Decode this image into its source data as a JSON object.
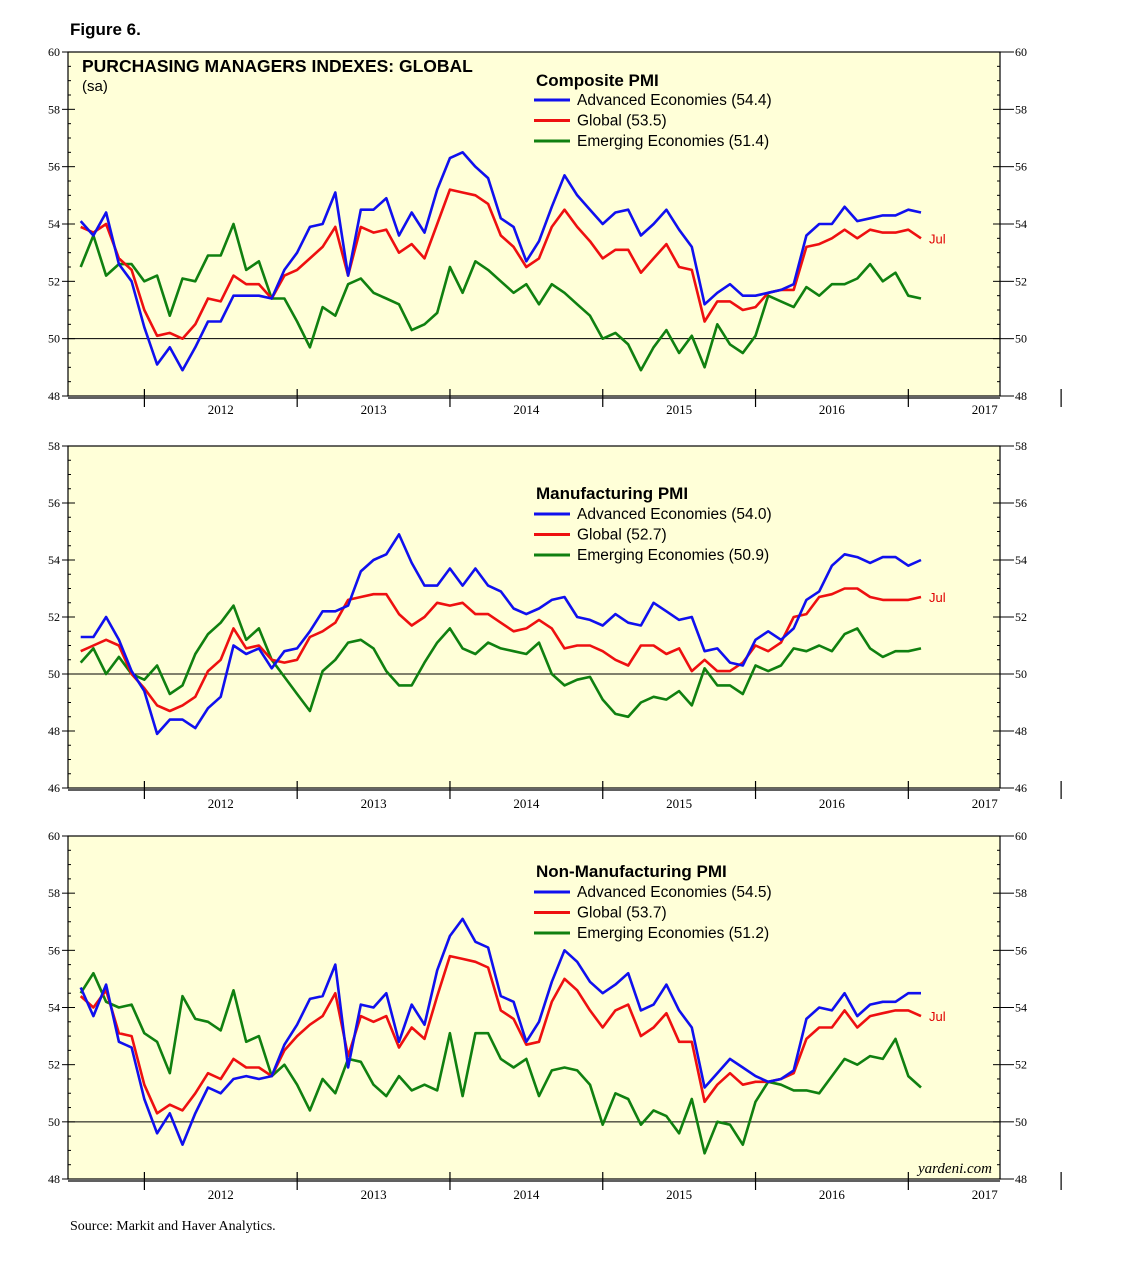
{
  "figure_label": "Figure 6.",
  "main_title": "PURCHASING MANAGERS INDEXES: GLOBAL",
  "subtitle": "(sa)",
  "source": "Source:  Markit and Haver Analytics.",
  "credit": "yardeni.com",
  "end_label": "Jul",
  "colors": {
    "advanced": "#1010ee",
    "global": "#ee1010",
    "emerging": "#108010",
    "background": "#ffffd8"
  },
  "chart_data": [
    {
      "type": "line",
      "title": "Composite PMI",
      "xlim": [
        2011.5,
        2017.6
      ],
      "ylim": [
        48,
        60
      ],
      "yticks": [
        48,
        50,
        52,
        54,
        56,
        58,
        60
      ],
      "x_tick_labels": [
        "2012",
        "2013",
        "2014",
        "2015",
        "2016",
        "2017"
      ],
      "reference_line": 50,
      "start": 2011.583,
      "series": [
        {
          "name": "Advanced Economies (54.4)",
          "color_key": "advanced",
          "values": [
            54.1,
            53.6,
            54.4,
            52.6,
            52.0,
            50.4,
            49.1,
            49.7,
            48.9,
            49.7,
            50.6,
            50.6,
            51.5,
            51.5,
            51.5,
            51.4,
            52.4,
            53.0,
            53.9,
            54.0,
            55.1,
            52.2,
            54.5,
            54.5,
            54.9,
            53.6,
            54.4,
            53.7,
            55.2,
            56.3,
            56.5,
            56.0,
            55.6,
            54.2,
            53.9,
            52.7,
            53.4,
            54.6,
            55.7,
            55.0,
            54.5,
            54.0,
            54.4,
            54.5,
            53.6,
            54.0,
            54.5,
            53.8,
            53.2,
            51.2,
            51.6,
            51.9,
            51.5,
            51.5,
            51.6,
            51.7,
            51.9,
            53.6,
            54.0,
            54.0,
            54.6,
            54.1,
            54.2,
            54.3,
            54.3,
            54.5,
            54.4
          ]
        },
        {
          "name": "Global (53.5)",
          "color_key": "global",
          "values": [
            53.9,
            53.7,
            54.0,
            52.8,
            52.4,
            51.0,
            50.1,
            50.2,
            50.0,
            50.5,
            51.4,
            51.3,
            52.2,
            51.9,
            51.9,
            51.4,
            52.2,
            52.4,
            52.8,
            53.2,
            53.9,
            52.2,
            53.9,
            53.7,
            53.8,
            53.0,
            53.3,
            52.8,
            54.0,
            55.2,
            55.1,
            55.0,
            54.7,
            53.6,
            53.2,
            52.5,
            52.8,
            53.9,
            54.5,
            53.9,
            53.4,
            52.8,
            53.1,
            53.1,
            52.3,
            52.8,
            53.3,
            52.5,
            52.4,
            50.6,
            51.3,
            51.3,
            51.0,
            51.1,
            51.6,
            51.7,
            51.7,
            53.2,
            53.3,
            53.5,
            53.8,
            53.5,
            53.8,
            53.7,
            53.7,
            53.8,
            53.5
          ]
        },
        {
          "name": "Emerging Economies (51.4)",
          "color_key": "emerging",
          "values": [
            52.5,
            53.6,
            52.2,
            52.6,
            52.6,
            52.0,
            52.2,
            50.8,
            52.1,
            52.0,
            52.9,
            52.9,
            54.0,
            52.4,
            52.7,
            51.4,
            51.4,
            50.6,
            49.7,
            51.1,
            50.8,
            51.9,
            52.1,
            51.6,
            51.4,
            51.2,
            50.3,
            50.5,
            50.9,
            52.5,
            51.6,
            52.7,
            52.4,
            52.0,
            51.6,
            51.9,
            51.2,
            51.9,
            51.6,
            51.2,
            50.8,
            50.0,
            50.2,
            49.8,
            48.9,
            49.7,
            50.3,
            49.5,
            50.1,
            49.0,
            50.5,
            49.8,
            49.5,
            50.1,
            51.5,
            51.3,
            51.1,
            51.8,
            51.5,
            51.9,
            51.9,
            52.1,
            52.6,
            52.0,
            52.3,
            51.5,
            51.4
          ]
        }
      ]
    },
    {
      "type": "line",
      "title": "Manufacturing PMI",
      "xlim": [
        2011.5,
        2017.6
      ],
      "ylim": [
        46,
        58
      ],
      "yticks": [
        46,
        48,
        50,
        52,
        54,
        56,
        58
      ],
      "x_tick_labels": [
        "2012",
        "2013",
        "2014",
        "2015",
        "2016",
        "2017"
      ],
      "reference_line": 50,
      "start": 2011.583,
      "series": [
        {
          "name": "Advanced Economies (54.0)",
          "color_key": "advanced",
          "values": [
            51.3,
            51.3,
            52.0,
            51.2,
            50.1,
            49.4,
            47.9,
            48.4,
            48.4,
            48.1,
            48.8,
            49.2,
            51.0,
            50.7,
            50.9,
            50.2,
            50.8,
            50.9,
            51.5,
            52.2,
            52.2,
            52.4,
            53.6,
            54.0,
            54.2,
            54.9,
            53.9,
            53.1,
            53.1,
            53.7,
            53.1,
            53.7,
            53.1,
            52.9,
            52.3,
            52.1,
            52.3,
            52.6,
            52.7,
            52.0,
            51.9,
            51.7,
            52.1,
            51.8,
            51.7,
            52.5,
            52.2,
            51.9,
            52.0,
            50.8,
            50.9,
            50.4,
            50.3,
            51.2,
            51.5,
            51.2,
            51.6,
            52.6,
            52.9,
            53.8,
            54.2,
            54.1,
            53.9,
            54.1,
            54.1,
            53.8,
            54.0
          ]
        },
        {
          "name": "Global (52.7)",
          "color_key": "global",
          "values": [
            50.8,
            51.0,
            51.2,
            51.0,
            50.0,
            49.5,
            48.9,
            48.7,
            48.9,
            49.2,
            50.1,
            50.5,
            51.6,
            50.9,
            51.0,
            50.5,
            50.4,
            50.5,
            51.3,
            51.5,
            51.8,
            52.6,
            52.7,
            52.8,
            52.8,
            52.1,
            51.7,
            52.0,
            52.5,
            52.4,
            52.5,
            52.1,
            52.1,
            51.8,
            51.5,
            51.6,
            51.9,
            51.6,
            50.9,
            51.0,
            51.0,
            50.8,
            50.5,
            50.3,
            51.0,
            51.0,
            50.7,
            50.9,
            50.1,
            50.5,
            50.1,
            50.1,
            50.4,
            51.0,
            50.8,
            51.1,
            52.0,
            52.1,
            52.7,
            52.8,
            53.0,
            53.0,
            52.7,
            52.6,
            52.6,
            52.6,
            52.7
          ]
        },
        {
          "name": "Emerging Economies (50.9)",
          "color_key": "emerging",
          "values": [
            50.4,
            50.9,
            50.0,
            50.6,
            50.0,
            49.8,
            50.3,
            49.3,
            49.6,
            50.7,
            51.4,
            51.8,
            52.4,
            51.2,
            51.6,
            50.5,
            49.9,
            49.3,
            48.7,
            50.1,
            50.5,
            51.1,
            51.2,
            50.9,
            50.1,
            49.6,
            49.6,
            50.4,
            51.1,
            51.6,
            50.9,
            50.7,
            51.1,
            50.9,
            50.8,
            50.7,
            51.1,
            50.0,
            49.6,
            49.8,
            49.9,
            49.1,
            48.6,
            48.5,
            49.0,
            49.2,
            49.1,
            49.4,
            48.9,
            50.2,
            49.6,
            49.6,
            49.3,
            50.3,
            50.1,
            50.3,
            50.9,
            50.8,
            51.0,
            50.8,
            51.4,
            51.6,
            50.9,
            50.6,
            50.8,
            50.8,
            50.9
          ]
        }
      ]
    },
    {
      "type": "line",
      "title": "Non-Manufacturing PMI",
      "xlim": [
        2011.5,
        2017.6
      ],
      "ylim": [
        48,
        60
      ],
      "yticks": [
        48,
        50,
        52,
        54,
        56,
        58,
        60
      ],
      "x_tick_labels": [
        "2012",
        "2013",
        "2014",
        "2015",
        "2016",
        "2017"
      ],
      "reference_line": 50,
      "start": 2011.583,
      "series": [
        {
          "name": "Advanced Economies (54.5)",
          "color_key": "advanced",
          "values": [
            54.7,
            53.7,
            54.8,
            52.8,
            52.6,
            50.8,
            49.6,
            50.3,
            49.2,
            50.3,
            51.2,
            51.0,
            51.5,
            51.6,
            51.5,
            51.6,
            52.7,
            53.4,
            54.3,
            54.4,
            55.5,
            51.9,
            54.1,
            54.0,
            54.5,
            52.8,
            54.1,
            53.4,
            55.3,
            56.5,
            57.1,
            56.3,
            56.1,
            54.4,
            54.2,
            52.8,
            53.5,
            54.9,
            56.0,
            55.6,
            54.9,
            54.5,
            54.8,
            55.2,
            53.9,
            54.1,
            54.8,
            53.9,
            53.3,
            51.2,
            51.7,
            52.2,
            51.9,
            51.6,
            51.4,
            51.5,
            51.8,
            53.6,
            54.0,
            53.9,
            54.5,
            53.7,
            54.1,
            54.2,
            54.2,
            54.5,
            54.5
          ]
        },
        {
          "name": "Global (53.7)",
          "color_key": "global",
          "values": [
            54.4,
            54.0,
            54.6,
            53.1,
            53.0,
            51.3,
            50.3,
            50.6,
            50.4,
            51.0,
            51.7,
            51.5,
            52.2,
            51.9,
            51.9,
            51.6,
            52.5,
            53.0,
            53.4,
            53.7,
            54.5,
            52.3,
            53.7,
            53.5,
            53.7,
            52.6,
            53.3,
            52.9,
            54.4,
            55.8,
            55.7,
            55.6,
            55.4,
            53.9,
            53.6,
            52.7,
            52.8,
            54.2,
            55.0,
            54.6,
            53.9,
            53.3,
            53.9,
            54.1,
            53.0,
            53.3,
            53.8,
            52.8,
            52.8,
            50.7,
            51.3,
            51.7,
            51.3,
            51.4,
            51.4,
            51.5,
            51.7,
            52.9,
            53.3,
            53.3,
            53.9,
            53.3,
            53.7,
            53.8,
            53.9,
            53.9,
            53.7
          ]
        },
        {
          "name": "Emerging Economies (51.2)",
          "color_key": "emerging",
          "values": [
            54.5,
            55.2,
            54.2,
            54.0,
            54.1,
            53.1,
            52.8,
            51.7,
            54.4,
            53.6,
            53.5,
            53.2,
            54.6,
            52.8,
            53.0,
            51.6,
            52.0,
            51.3,
            50.4,
            51.5,
            51.0,
            52.2,
            52.1,
            51.3,
            50.9,
            51.6,
            51.1,
            51.3,
            51.1,
            53.1,
            50.9,
            53.1,
            53.1,
            52.2,
            51.9,
            52.2,
            50.9,
            51.8,
            51.9,
            51.8,
            51.3,
            49.9,
            51.0,
            50.8,
            49.9,
            50.4,
            50.2,
            49.6,
            50.8,
            48.9,
            50.0,
            49.9,
            49.2,
            50.7,
            51.4,
            51.3,
            51.1,
            51.1,
            51.0,
            51.6,
            52.2,
            52.0,
            52.3,
            52.2,
            52.9,
            51.6,
            51.2
          ]
        }
      ]
    }
  ]
}
